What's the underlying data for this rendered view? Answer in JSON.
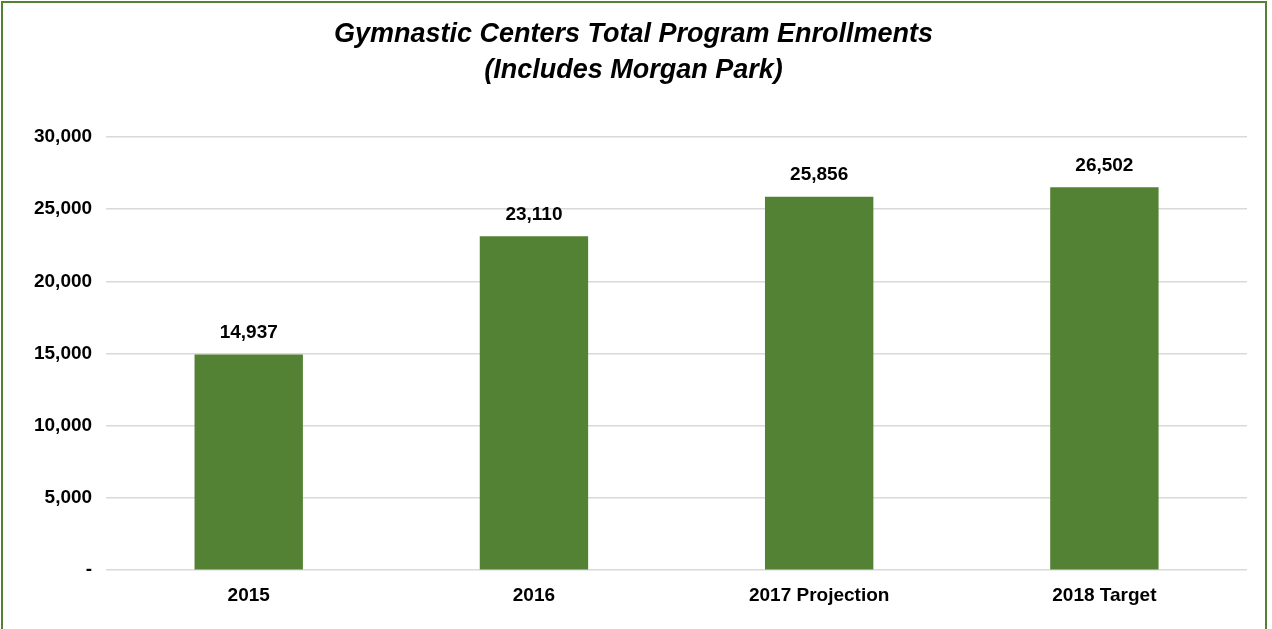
{
  "chart_data": {
    "type": "bar",
    "title": "Gymnastic Centers Total Program Enrollments",
    "subtitle": "(Includes Morgan Park)",
    "categories": [
      "2015",
      "2016",
      "2017 Projection",
      "2018 Target"
    ],
    "values": [
      14937,
      23110,
      25856,
      26502
    ],
    "color": "#548235",
    "value_labels": [
      "14,937",
      "23,110",
      "25,856",
      "26,502"
    ],
    "ylim": [
      0,
      30000
    ],
    "yticks": [
      {
        "value": 0,
        "label": "-"
      },
      {
        "value": 5000,
        "label": "5,000"
      },
      {
        "value": 10000,
        "label": "10,000"
      },
      {
        "value": 15000,
        "label": "15,000"
      },
      {
        "value": 20000,
        "label": "20,000"
      },
      {
        "value": 25000,
        "label": "25,000"
      },
      {
        "value": 30000,
        "label": "30,000"
      }
    ],
    "grid": "y",
    "legend": false
  }
}
